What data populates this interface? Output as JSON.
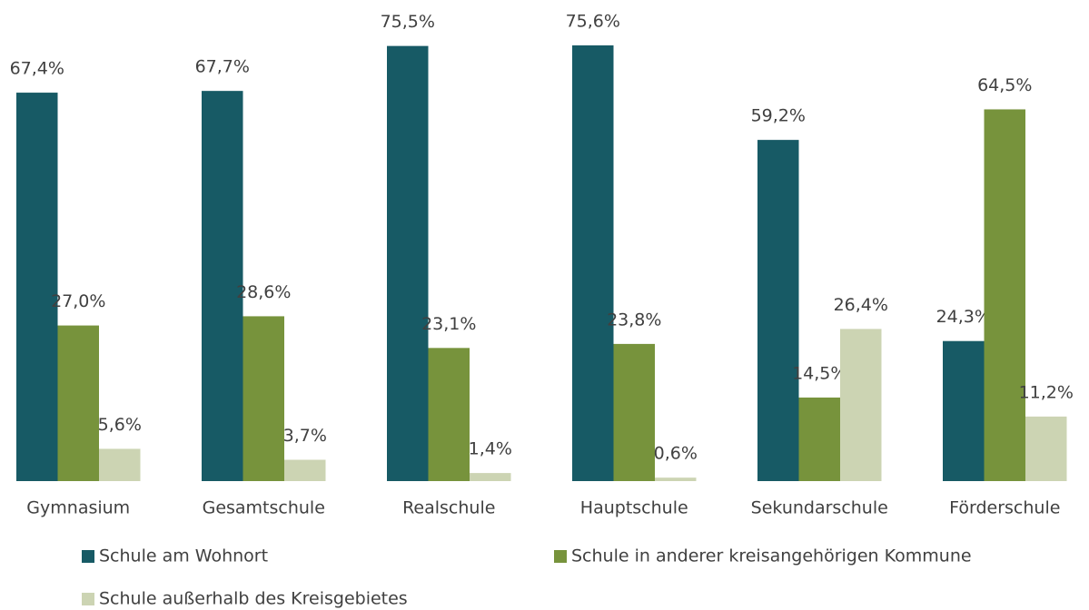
{
  "chart_data": {
    "type": "bar",
    "categories": [
      "Gymnasium",
      "Gesamtschule",
      "Realschule",
      "Hauptschule",
      "Sekundarschule",
      "Förderschule"
    ],
    "series": [
      {
        "name": "Schule am Wohnort",
        "color": "#175a65",
        "values": [
          67.4,
          67.7,
          75.5,
          75.6,
          59.2,
          24.3
        ],
        "value_labels": [
          "67,4%",
          "67,7%",
          "75,5%",
          "75,6%",
          "59,2%",
          "24,3%"
        ]
      },
      {
        "name": "Schule in anderer kreisangehörigen Kommune",
        "color": "#77933c",
        "values": [
          27.0,
          28.6,
          23.1,
          23.8,
          14.5,
          64.5
        ],
        "value_labels": [
          "27,0%",
          "28,6%",
          "23,1%",
          "23,8%",
          "14,5%",
          "64,5%"
        ]
      },
      {
        "name": "Schule außerhalb des Kreisgebietes",
        "color": "#ccd4b3",
        "values": [
          5.6,
          3.7,
          1.4,
          0.6,
          26.4,
          11.2
        ],
        "value_labels": [
          "5,6%",
          "3,7%",
          "1,4%",
          "0,6%",
          "26,4%",
          "11,2%"
        ]
      }
    ]
  }
}
